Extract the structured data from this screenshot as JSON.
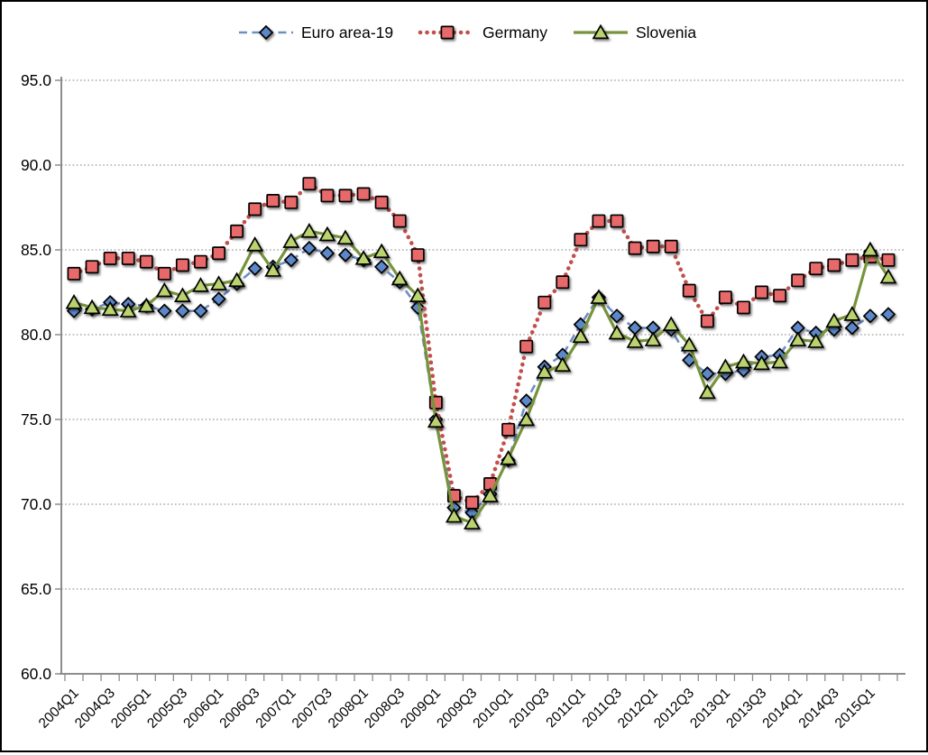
{
  "chart_data": {
    "type": "line",
    "title": "",
    "ylabel": "",
    "xlabel": "",
    "ylim": [
      60,
      95
    ],
    "ytick_step": 5,
    "y_tick_labels": [
      "60.0",
      "65.0",
      "70.0",
      "75.0",
      "80.0",
      "85.0",
      "90.0",
      "95.0"
    ],
    "grid": {
      "horizontal": true,
      "style": "dotted",
      "color": "#7f7f7f"
    },
    "axis_color": "#8c8c8c",
    "legend_position": "top-center",
    "label_every": 2,
    "x_tick_labels": [
      "2004Q1",
      "2004Q3",
      "2005Q1",
      "2005Q3",
      "2006Q1",
      "2006Q3",
      "2007Q1",
      "2007Q3",
      "2008Q1",
      "2008Q3",
      "2009Q1",
      "2009Q3",
      "2010Q1",
      "2010Q3",
      "2011Q1",
      "2011Q3",
      "2012Q1",
      "2012Q3",
      "2013Q1",
      "2013Q3",
      "2014Q1",
      "2014Q3",
      "2015Q1"
    ],
    "categories": [
      "2004Q1",
      "2004Q2",
      "2004Q3",
      "2004Q4",
      "2005Q1",
      "2005Q2",
      "2005Q3",
      "2005Q4",
      "2006Q1",
      "2006Q2",
      "2006Q3",
      "2006Q4",
      "2007Q1",
      "2007Q2",
      "2007Q3",
      "2007Q4",
      "2008Q1",
      "2008Q2",
      "2008Q3",
      "2008Q4",
      "2009Q1",
      "2009Q2",
      "2009Q3",
      "2009Q4",
      "2010Q1",
      "2010Q2",
      "2010Q3",
      "2010Q4",
      "2011Q1",
      "2011Q2",
      "2011Q3",
      "2011Q4",
      "2012Q1",
      "2012Q2",
      "2012Q3",
      "2012Q4",
      "2013Q1",
      "2013Q2",
      "2013Q3",
      "2013Q4",
      "2014Q1",
      "2014Q2",
      "2014Q3",
      "2014Q4",
      "2015Q1",
      "2015Q2"
    ],
    "series": [
      {
        "name": "Euro area-19",
        "line_style": "dashed",
        "marker": "diamond",
        "line_color": "#6d8fc5",
        "marker_fill": "#5b87c9",
        "marker_stroke": "#000000",
        "values": [
          81.4,
          81.5,
          81.9,
          81.8,
          81.7,
          81.4,
          81.4,
          81.4,
          82.1,
          83.0,
          83.9,
          84.0,
          84.4,
          85.1,
          84.8,
          84.7,
          84.4,
          84.0,
          83.1,
          81.6,
          75.0,
          69.8,
          69.5,
          70.6,
          72.6,
          76.1,
          78.1,
          78.8,
          80.6,
          82.2,
          81.1,
          80.4,
          80.4,
          80.3,
          78.5,
          77.7,
          77.7,
          77.9,
          78.7,
          78.8,
          80.4,
          80.1,
          80.3,
          80.4,
          81.1,
          81.2
        ]
      },
      {
        "name": "Germany",
        "line_style": "dotted",
        "marker": "square",
        "line_color": "#c0504d",
        "marker_fill": "#e8696a",
        "marker_stroke": "#000000",
        "values": [
          83.6,
          84.0,
          84.5,
          84.5,
          84.3,
          83.6,
          84.1,
          84.3,
          84.8,
          86.1,
          87.4,
          87.9,
          87.8,
          88.9,
          88.2,
          88.2,
          88.3,
          87.8,
          86.7,
          84.7,
          76.0,
          70.5,
          70.1,
          71.2,
          74.4,
          79.3,
          81.9,
          83.1,
          85.6,
          86.7,
          86.7,
          85.1,
          85.2,
          85.2,
          82.6,
          80.8,
          82.2,
          81.6,
          82.5,
          82.3,
          83.2,
          83.9,
          84.1,
          84.4,
          84.6,
          84.4
        ]
      },
      {
        "name": "Slovenia",
        "line_style": "solid",
        "marker": "triangle",
        "line_color": "#77933c",
        "marker_fill": "#bad36e",
        "marker_stroke": "#000000",
        "values": [
          81.9,
          81.6,
          81.5,
          81.4,
          81.7,
          82.6,
          82.3,
          82.9,
          83.0,
          83.2,
          85.3,
          83.8,
          85.5,
          86.1,
          85.9,
          85.7,
          84.5,
          84.9,
          83.3,
          82.3,
          74.9,
          69.3,
          68.9,
          70.5,
          72.7,
          75.0,
          77.8,
          78.2,
          79.9,
          82.2,
          80.1,
          79.6,
          79.7,
          80.6,
          79.4,
          76.6,
          78.1,
          78.4,
          78.3,
          78.4,
          79.7,
          79.6,
          80.8,
          81.2,
          85.0,
          83.4
        ]
      }
    ]
  }
}
